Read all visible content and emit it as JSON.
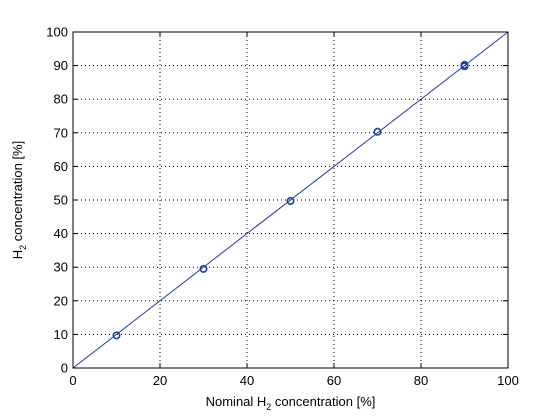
{
  "chart_data": {
    "type": "scatter",
    "xlabel": "Nominal H2 concentration [%]",
    "xlabel_parts": {
      "pre": "Nominal H",
      "sub": "2",
      "post": " concentration [%]"
    },
    "ylabel": "H2 concentration [%]",
    "ylabel_parts": {
      "pre": "H",
      "sub": "2",
      "post": " concentration [%]"
    },
    "xlim": [
      0,
      100
    ],
    "ylim": [
      0,
      100
    ],
    "xticks": [
      0,
      20,
      40,
      60,
      80,
      100
    ],
    "yticks": [
      0,
      10,
      20,
      30,
      40,
      50,
      60,
      70,
      80,
      90,
      100
    ],
    "grid": true,
    "grid_style": "dotted",
    "series": [
      {
        "type": "scatter",
        "marker": "circle",
        "color": "#1f3f9f",
        "points": [
          {
            "x": 10,
            "y": 9.7
          },
          {
            "x": 30,
            "y": 29.5
          },
          {
            "x": 50,
            "y": 49.7
          },
          {
            "x": 70,
            "y": 70.3
          },
          {
            "x": 90,
            "y": 89.8
          },
          {
            "x": 90,
            "y": 90.2
          }
        ]
      },
      {
        "type": "line",
        "color": "#1f3f9f",
        "points": [
          {
            "x": 0,
            "y": 0
          },
          {
            "x": 100,
            "y": 100
          }
        ]
      }
    ]
  }
}
